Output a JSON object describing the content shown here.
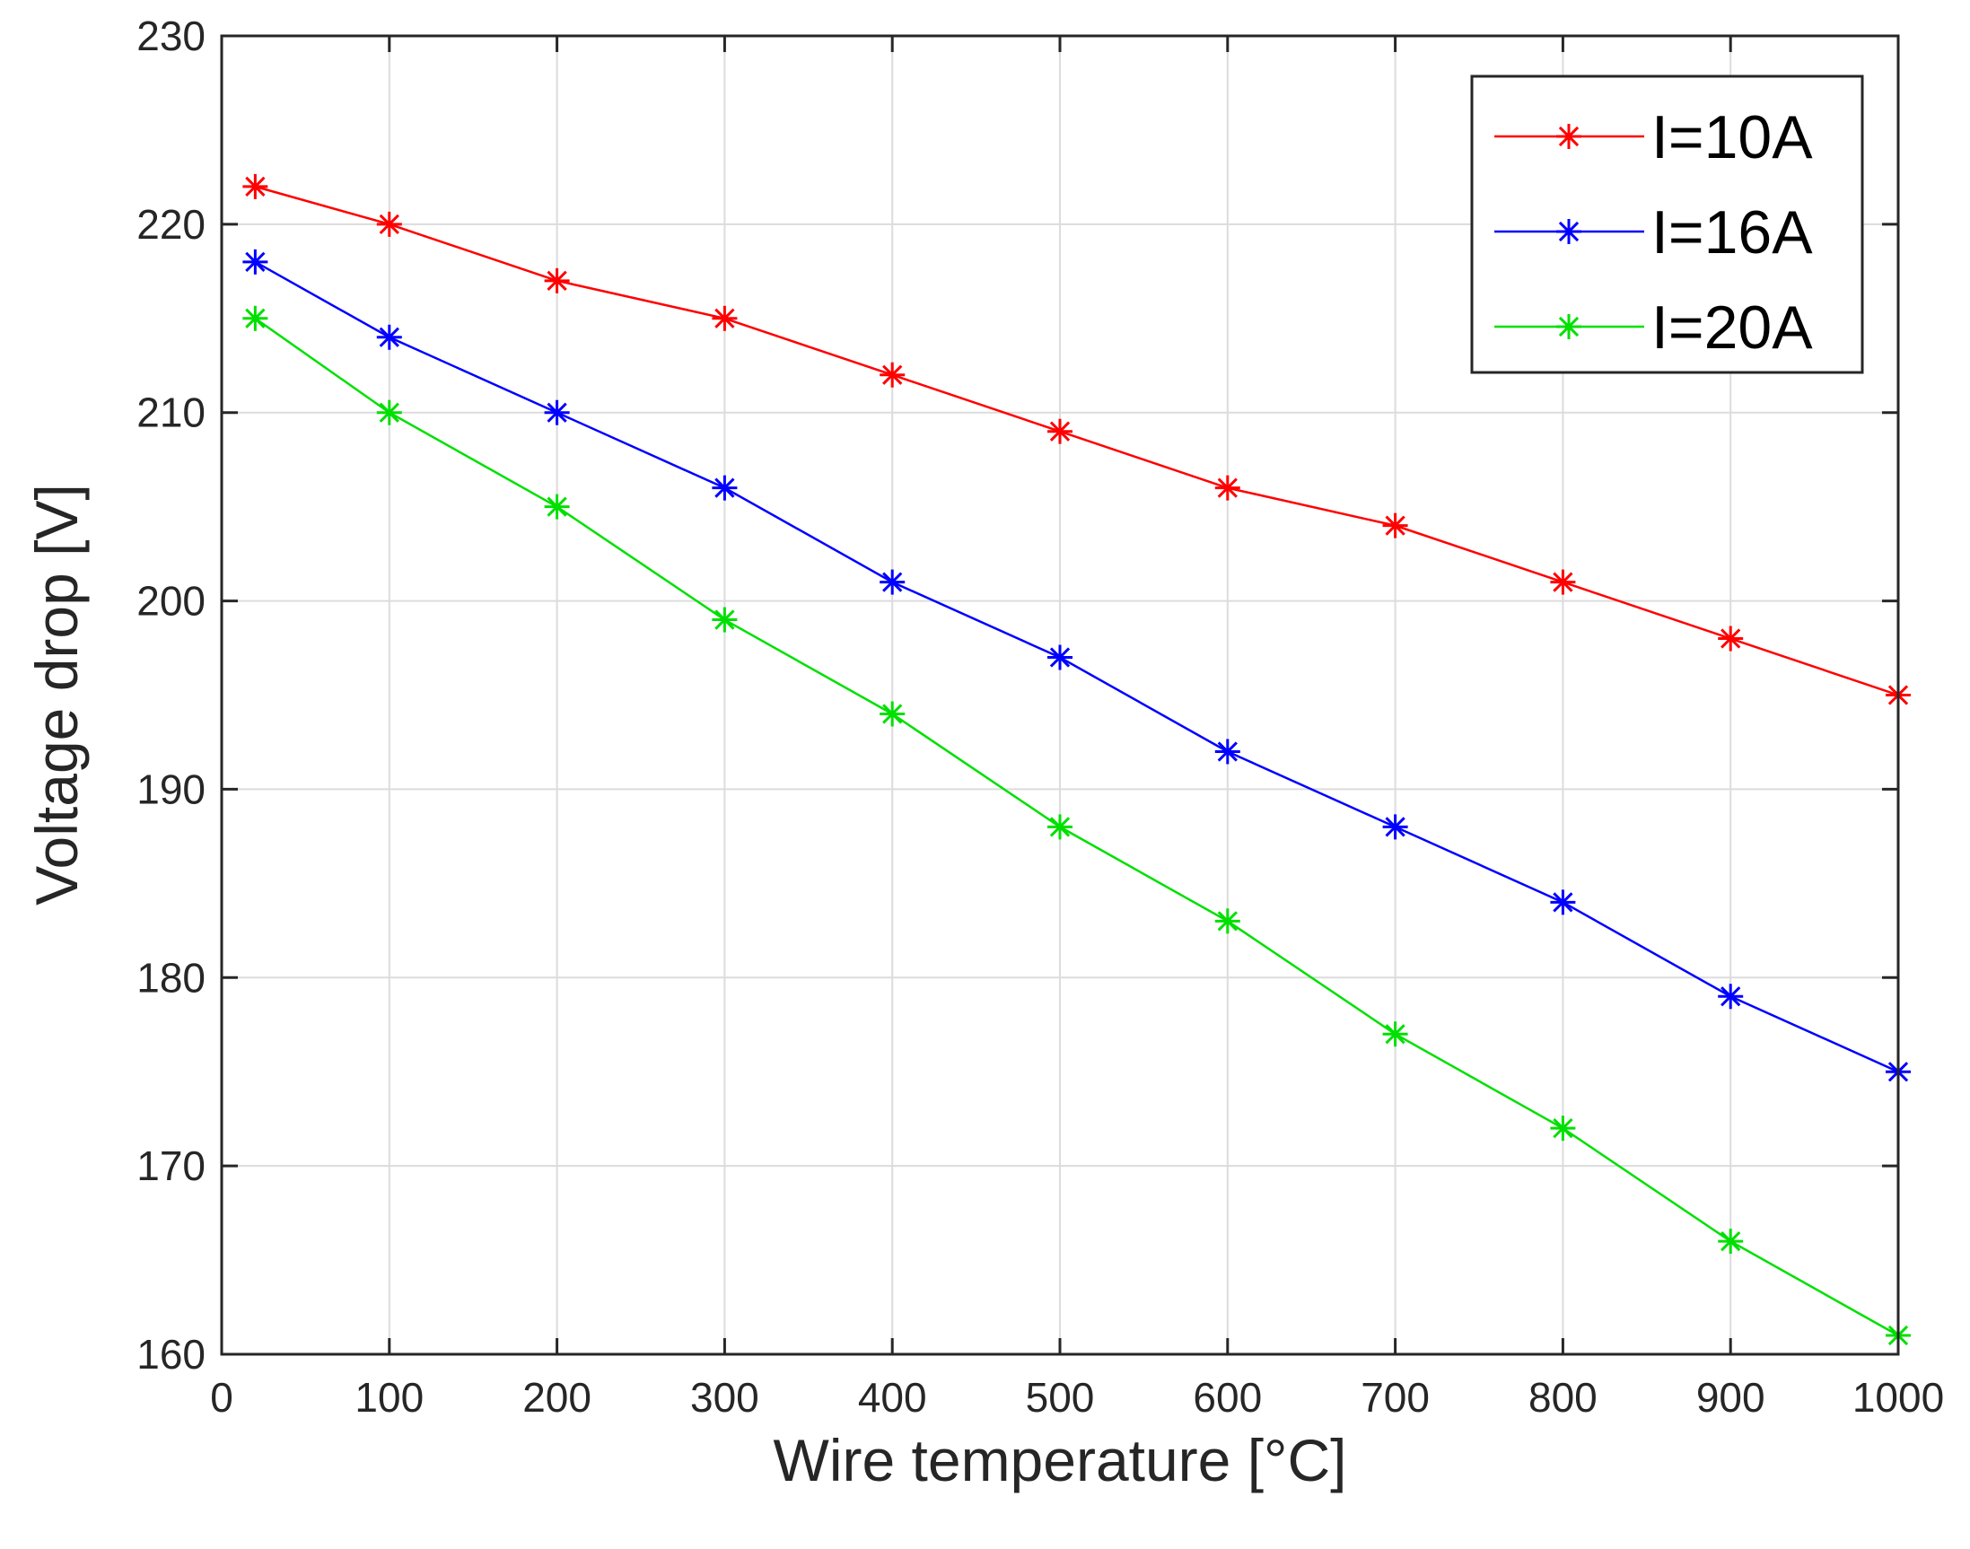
{
  "chart_data": {
    "type": "line",
    "title": "",
    "xlabel": "Wire temperature [°C]",
    "ylabel": "Voltage drop [V]",
    "xlim": [
      0,
      1000
    ],
    "ylim": [
      160,
      230
    ],
    "xticks": [
      0,
      100,
      200,
      300,
      400,
      500,
      600,
      700,
      800,
      900,
      1000
    ],
    "yticks": [
      160,
      170,
      180,
      190,
      200,
      210,
      220,
      230
    ],
    "grid": true,
    "legend_position": "top-right",
    "marker": "asterisk",
    "x": [
      20,
      100,
      200,
      300,
      400,
      500,
      600,
      700,
      800,
      900,
      1000
    ],
    "series": [
      {
        "name": "I=10A",
        "color": "#ff0000",
        "values": [
          222,
          220,
          217,
          215,
          212,
          209,
          206,
          204,
          201,
          198,
          195
        ]
      },
      {
        "name": "I=16A",
        "color": "#0000ff",
        "values": [
          218,
          214,
          210,
          206,
          201,
          197,
          192,
          188,
          184,
          179,
          175
        ]
      },
      {
        "name": "I=20A",
        "color": "#00e000",
        "values": [
          215,
          210,
          205,
          199,
          194,
          188,
          183,
          177,
          172,
          166,
          161
        ]
      }
    ]
  }
}
